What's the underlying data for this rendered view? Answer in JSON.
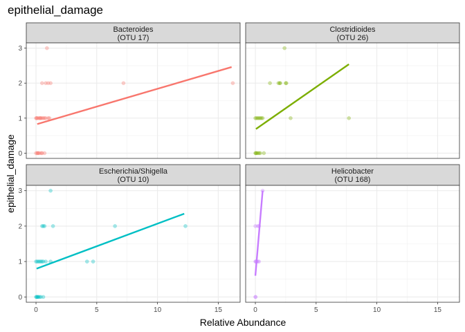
{
  "chart_data": {
    "type": "scatter",
    "title": "epithelial_damage",
    "xlabel": "Relative Abundance",
    "ylabel": "epithelial_damage",
    "xlim": [
      -0.8,
      16.8
    ],
    "ylim": [
      -0.15,
      3.15
    ],
    "xticks": [
      0,
      5,
      10,
      15
    ],
    "yticks": [
      0,
      1,
      2,
      3
    ],
    "grid": true,
    "panels": [
      {
        "name": "Bacteroides",
        "otu": "(OTU 17)",
        "color": "#F8766D",
        "points": [
          [
            0.0,
            0
          ],
          [
            0.1,
            0
          ],
          [
            0.15,
            0
          ],
          [
            0.2,
            0
          ],
          [
            0.3,
            0
          ],
          [
            0.45,
            0
          ],
          [
            0.5,
            0
          ],
          [
            0.7,
            0
          ],
          [
            0.0,
            1
          ],
          [
            0.05,
            1
          ],
          [
            0.1,
            1
          ],
          [
            0.2,
            1
          ],
          [
            0.3,
            1
          ],
          [
            0.35,
            1
          ],
          [
            0.4,
            1
          ],
          [
            0.5,
            1
          ],
          [
            0.6,
            1
          ],
          [
            0.7,
            1
          ],
          [
            0.8,
            1
          ],
          [
            1.0,
            1
          ],
          [
            1.1,
            1
          ],
          [
            0.5,
            2
          ],
          [
            0.8,
            2
          ],
          [
            1.0,
            2
          ],
          [
            1.2,
            2
          ],
          [
            7.2,
            2
          ],
          [
            16.2,
            2
          ],
          [
            0.9,
            3
          ]
        ],
        "fit": [
          [
            0.1,
            0.83
          ],
          [
            16.1,
            2.46
          ]
        ]
      },
      {
        "name": "Clostridioides",
        "otu": "(OTU 26)",
        "color": "#7CAE00",
        "points": [
          [
            0.0,
            0
          ],
          [
            0.05,
            0
          ],
          [
            0.1,
            0
          ],
          [
            0.2,
            0
          ],
          [
            0.3,
            0
          ],
          [
            0.4,
            0
          ],
          [
            0.7,
            0
          ],
          [
            0.0,
            1
          ],
          [
            0.1,
            1
          ],
          [
            0.2,
            1
          ],
          [
            0.3,
            1
          ],
          [
            0.4,
            1
          ],
          [
            0.5,
            1
          ],
          [
            0.6,
            1
          ],
          [
            2.9,
            1
          ],
          [
            7.7,
            1
          ],
          [
            1.2,
            2
          ],
          [
            1.9,
            2
          ],
          [
            2.0,
            2
          ],
          [
            2.05,
            2
          ],
          [
            2.5,
            2
          ],
          [
            2.55,
            2
          ],
          [
            2.4,
            3
          ]
        ],
        "fit": [
          [
            0.05,
            0.69
          ],
          [
            7.7,
            2.54
          ]
        ]
      },
      {
        "name": "Escherichia/Shigella",
        "otu": "(OTU 10)",
        "color": "#00BFC4",
        "points": [
          [
            0.0,
            0
          ],
          [
            0.05,
            0
          ],
          [
            0.1,
            0
          ],
          [
            0.15,
            0
          ],
          [
            0.2,
            0
          ],
          [
            0.3,
            0
          ],
          [
            0.4,
            0
          ],
          [
            0.6,
            0
          ],
          [
            0.0,
            1
          ],
          [
            0.1,
            1
          ],
          [
            0.2,
            1
          ],
          [
            0.3,
            1
          ],
          [
            0.4,
            1
          ],
          [
            0.5,
            1
          ],
          [
            0.6,
            1
          ],
          [
            0.8,
            1
          ],
          [
            1.2,
            1
          ],
          [
            4.2,
            1
          ],
          [
            4.7,
            1
          ],
          [
            0.5,
            2
          ],
          [
            0.6,
            2
          ],
          [
            0.7,
            2
          ],
          [
            1.4,
            2
          ],
          [
            6.5,
            2
          ],
          [
            12.3,
            2
          ],
          [
            1.2,
            3
          ]
        ],
        "fit": [
          [
            0.05,
            0.8
          ],
          [
            12.2,
            2.35
          ]
        ]
      },
      {
        "name": "Helicobacter",
        "otu": "(OTU 168)",
        "color": "#C77CFF",
        "points": [
          [
            0.0,
            0
          ],
          [
            0.02,
            0
          ],
          [
            0.0,
            1
          ],
          [
            0.05,
            1
          ],
          [
            0.1,
            1
          ],
          [
            0.2,
            1
          ],
          [
            0.3,
            1
          ],
          [
            0.0,
            2
          ],
          [
            0.2,
            2
          ],
          [
            0.3,
            2
          ],
          [
            0.6,
            3
          ]
        ],
        "fit": [
          [
            0.0,
            0.6
          ],
          [
            0.6,
            3.0
          ]
        ]
      }
    ]
  }
}
